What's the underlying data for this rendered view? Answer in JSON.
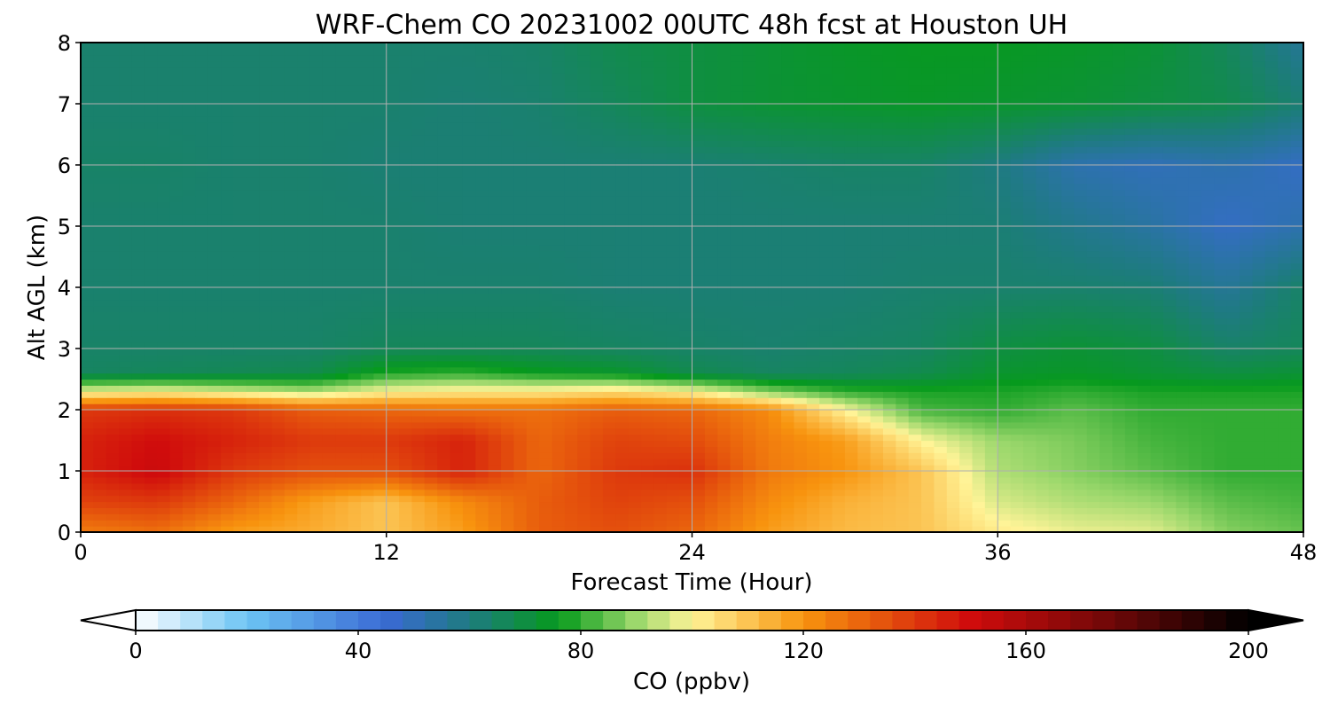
{
  "chart_data": {
    "type": "heatmap",
    "title": "WRF-Chem CO  20231002 00UTC 48h fcst at Houston UH",
    "xlabel": "Forecast Time (Hour)",
    "ylabel": "Alt AGL (km)",
    "xlim": [
      0,
      48
    ],
    "ylim": [
      0,
      8
    ],
    "xticks": [
      0,
      12,
      24,
      36,
      48
    ],
    "yticks": [
      0,
      1,
      2,
      3,
      4,
      5,
      6,
      7,
      8
    ],
    "grid": true,
    "x": [
      0,
      3,
      6,
      9,
      12,
      15,
      18,
      21,
      24,
      27,
      30,
      33,
      36,
      39,
      42,
      45,
      48
    ],
    "y": [
      0,
      0.5,
      1,
      1.5,
      2,
      2.3,
      2.6,
      3,
      4,
      5,
      6,
      7,
      8
    ],
    "values": [
      [
        125,
        128,
        118,
        115,
        110,
        118,
        132,
        135,
        130,
        118,
        112,
        110,
        102,
        98,
        97,
        88,
        85
      ],
      [
        138,
        140,
        130,
        118,
        110,
        122,
        132,
        138,
        135,
        122,
        114,
        110,
        96,
        92,
        90,
        84,
        82
      ],
      [
        145,
        152,
        140,
        135,
        135,
        145,
        130,
        140,
        142,
        126,
        120,
        110,
        92,
        88,
        84,
        80,
        80
      ],
      [
        145,
        150,
        145,
        140,
        140,
        145,
        130,
        138,
        136,
        125,
        118,
        100,
        90,
        87,
        82,
        80,
        80
      ],
      [
        140,
        142,
        140,
        132,
        130,
        128,
        128,
        132,
        130,
        122,
        100,
        82,
        80,
        84,
        80,
        80,
        80
      ],
      [
        98,
        100,
        96,
        92,
        100,
        102,
        102,
        105,
        100,
        88,
        80,
        78,
        78,
        80,
        78,
        78,
        78
      ],
      [
        65,
        66,
        67,
        68,
        78,
        80,
        76,
        74,
        68,
        65,
        66,
        68,
        73,
        74,
        72,
        70,
        72
      ],
      [
        64,
        64,
        64,
        64,
        66,
        66,
        66,
        65,
        64,
        63,
        64,
        65,
        70,
        72,
        70,
        64,
        66
      ],
      [
        63,
        63,
        63,
        63,
        63,
        63,
        63,
        62,
        62,
        62,
        62,
        63,
        63,
        63,
        62,
        56,
        64
      ],
      [
        63,
        63,
        63,
        63,
        63,
        62,
        62,
        62,
        62,
        62,
        62,
        62,
        62,
        58,
        54,
        48,
        52
      ],
      [
        64,
        64,
        63,
        63,
        62,
        62,
        62,
        62,
        62,
        63,
        64,
        64,
        60,
        52,
        50,
        52,
        48
      ],
      [
        63,
        63,
        63,
        63,
        63,
        62,
        63,
        66,
        70,
        72,
        73,
        74,
        73,
        72,
        70,
        68,
        62
      ],
      [
        63,
        63,
        63,
        63,
        63,
        63,
        64,
        68,
        70,
        72,
        74,
        75,
        75,
        74,
        72,
        66,
        56
      ]
    ],
    "colorbar": {
      "label": "CO  (ppbv)",
      "min": 0,
      "max": 200,
      "ticks": [
        0,
        40,
        80,
        120,
        160,
        200
      ],
      "extend": "both",
      "stops": [
        {
          "v": 0,
          "c": "#ffffff"
        },
        {
          "v": 20,
          "c": "#6cc4f4"
        },
        {
          "v": 45,
          "c": "#3a6ad4"
        },
        {
          "v": 60,
          "c": "#1e7b80"
        },
        {
          "v": 76,
          "c": "#069a1c"
        },
        {
          "v": 90,
          "c": "#9cd86c"
        },
        {
          "v": 100,
          "c": "#fff498"
        },
        {
          "v": 120,
          "c": "#f8940e"
        },
        {
          "v": 150,
          "c": "#d00c0c"
        },
        {
          "v": 175,
          "c": "#700808"
        },
        {
          "v": 200,
          "c": "#000000"
        }
      ]
    }
  }
}
